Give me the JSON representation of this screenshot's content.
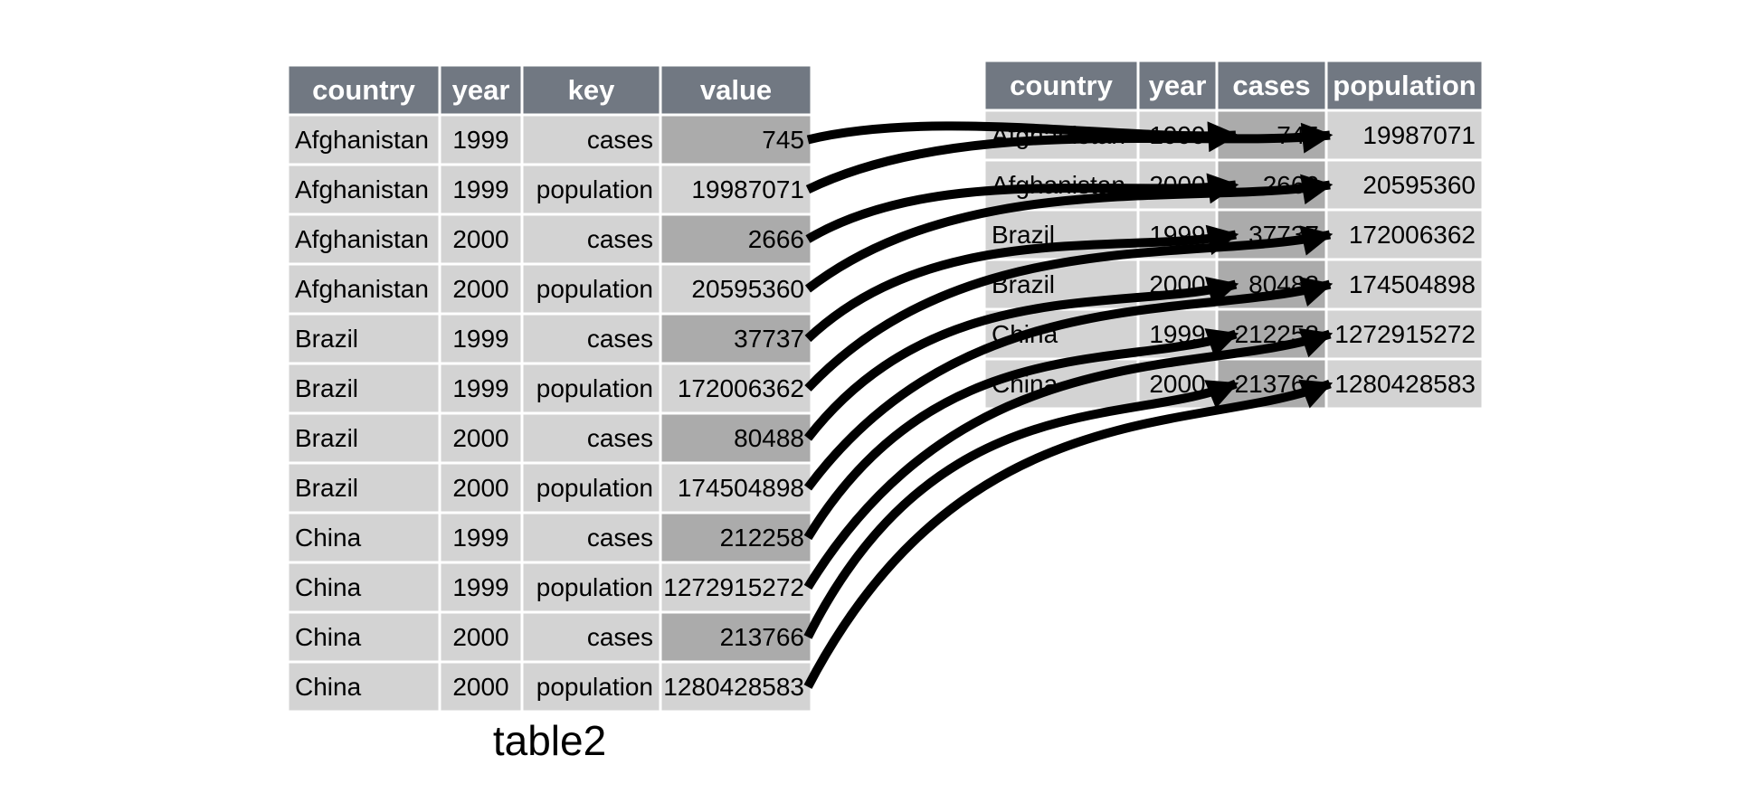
{
  "figure": {
    "caption": "table2"
  },
  "colors": {
    "background": "#ffffff",
    "header_bg": "#717882",
    "header_text": "#ffffff",
    "cell_bg": "#d3d3d3",
    "cell_text": "#000000",
    "highlight_bg": "#ababab",
    "grid_line": "#ffffff",
    "arrow": "#000000"
  },
  "left_table": {
    "caption": "table2",
    "columns": [
      "country",
      "year",
      "key",
      "value"
    ],
    "aligns": [
      "left",
      "center",
      "right",
      "right"
    ],
    "highlight": {
      "col": 3,
      "rows": [
        0,
        2,
        4,
        6,
        8,
        10
      ]
    },
    "rows": [
      [
        "Afghanistan",
        "1999",
        "cases",
        "745"
      ],
      [
        "Afghanistan",
        "1999",
        "population",
        "19987071"
      ],
      [
        "Afghanistan",
        "2000",
        "cases",
        "2666"
      ],
      [
        "Afghanistan",
        "2000",
        "population",
        "20595360"
      ],
      [
        "Brazil",
        "1999",
        "cases",
        "37737"
      ],
      [
        "Brazil",
        "1999",
        "population",
        "172006362"
      ],
      [
        "Brazil",
        "2000",
        "cases",
        "80488"
      ],
      [
        "Brazil",
        "2000",
        "population",
        "174504898"
      ],
      [
        "China",
        "1999",
        "cases",
        "212258"
      ],
      [
        "China",
        "1999",
        "population",
        "1272915272"
      ],
      [
        "China",
        "2000",
        "cases",
        "213766"
      ],
      [
        "China",
        "2000",
        "population",
        "1280428583"
      ]
    ]
  },
  "right_table": {
    "columns": [
      "country",
      "year",
      "cases",
      "population"
    ],
    "aligns": [
      "left",
      "center",
      "right",
      "right"
    ],
    "highlight": {
      "col": 2,
      "rows": "all"
    },
    "rows": [
      [
        "Afghanistan",
        "1999",
        "745",
        "19987071"
      ],
      [
        "Afghanistan",
        "2000",
        "2666",
        "20595360"
      ],
      [
        "Brazil",
        "1999",
        "37737",
        "172006362"
      ],
      [
        "Brazil",
        "2000",
        "80488",
        "174504898"
      ],
      [
        "China",
        "1999",
        "212258",
        "1272915272"
      ],
      [
        "China",
        "2000",
        "213766",
        "1280428583"
      ]
    ]
  },
  "arrows": [
    {
      "from_row": 0,
      "to_row": 0,
      "to_col": "cases"
    },
    {
      "from_row": 1,
      "to_row": 0,
      "to_col": "population"
    },
    {
      "from_row": 2,
      "to_row": 1,
      "to_col": "cases"
    },
    {
      "from_row": 3,
      "to_row": 1,
      "to_col": "population"
    },
    {
      "from_row": 4,
      "to_row": 2,
      "to_col": "cases"
    },
    {
      "from_row": 5,
      "to_row": 2,
      "to_col": "population"
    },
    {
      "from_row": 6,
      "to_row": 3,
      "to_col": "cases"
    },
    {
      "from_row": 7,
      "to_row": 3,
      "to_col": "population"
    },
    {
      "from_row": 8,
      "to_row": 4,
      "to_col": "cases"
    },
    {
      "from_row": 9,
      "to_row": 4,
      "to_col": "population"
    },
    {
      "from_row": 10,
      "to_row": 5,
      "to_col": "cases"
    },
    {
      "from_row": 11,
      "to_row": 5,
      "to_col": "population"
    }
  ]
}
